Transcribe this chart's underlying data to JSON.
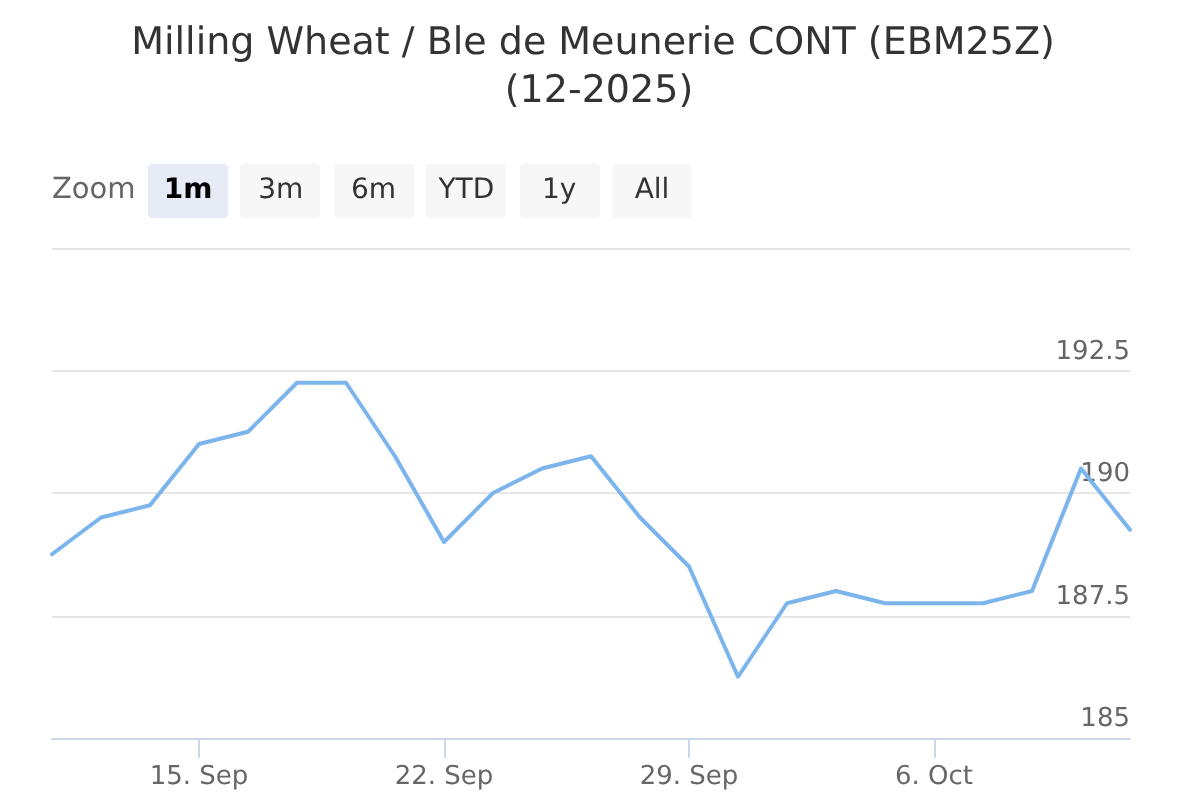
{
  "chart_data": {
    "type": "line",
    "title": "Milling Wheat / Ble de Meunerie CONT (EBM25Z) (12-2025)",
    "annotations": [
      "Zoom",
      "1m",
      "3m",
      "6m",
      "YTD",
      "1y",
      "All"
    ],
    "categories": [
      null,
      null,
      null,
      "15. Sep",
      null,
      null,
      null,
      null,
      "22. Sep",
      null,
      null,
      null,
      null,
      "29. Sep",
      null,
      null,
      null,
      null,
      "6. Oct",
      null,
      null,
      null,
      null
    ],
    "series": [
      {
        "color": "#7cb5ec",
        "values": [
          188.75,
          189.5,
          189.75,
          191.0,
          191.25,
          192.25,
          192.25,
          190.75,
          189.0,
          190.0,
          190.5,
          190.75,
          189.5,
          188.5,
          186.25,
          187.75,
          188.0,
          187.75,
          187.75,
          187.75,
          188.0,
          190.5,
          189.25
        ]
      }
    ],
    "ylim": [
      185,
      195
    ],
    "yticks": [
      185,
      187.5,
      190,
      192.5,
      {
        "value": 195,
        "label": null
      }
    ],
    "grid": "y",
    "marker": "none",
    "line_style": "solid"
  }
}
